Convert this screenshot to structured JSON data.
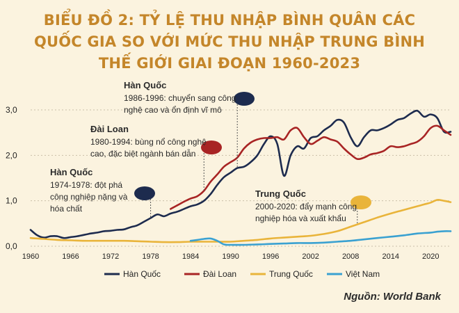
{
  "chart_data": {
    "type": "line",
    "title_lines": [
      "BIỂU ĐỒ 2: TỶ LỆ THU NHẬP BÌNH QUÂN CÁC",
      "QUỐC GIA SO VỚI MỨC THU NHẬP TRUNG BÌNH",
      "THẾ GIỚI GIAI ĐOẠN 1960-2023"
    ],
    "ylim": [
      0,
      3.0
    ],
    "xlim": [
      1960,
      2023
    ],
    "y_ticks": [
      0,
      1,
      2,
      3
    ],
    "y_tick_labels": [
      "0,0",
      "1,0",
      "2,0",
      "3,0"
    ],
    "x_ticks": [
      1960,
      1966,
      1972,
      1978,
      1984,
      1990,
      1996,
      2002,
      2008,
      2014,
      2020
    ],
    "x_tick_labels": [
      "1960",
      "1966",
      "1972",
      "1978",
      "1984",
      "1990",
      "1996",
      "2002",
      "2008",
      "2014",
      "2020"
    ],
    "grid": "horizontal dashed",
    "legend_position": "bottom",
    "series": [
      {
        "name": "Hàn Quốc",
        "color": "#1d2b4e",
        "points": [
          [
            1960,
            0.36
          ],
          [
            1961,
            0.24
          ],
          [
            1962,
            0.19
          ],
          [
            1963,
            0.22
          ],
          [
            1964,
            0.22
          ],
          [
            1965,
            0.18
          ],
          [
            1966,
            0.2
          ],
          [
            1967,
            0.22
          ],
          [
            1968,
            0.25
          ],
          [
            1969,
            0.28
          ],
          [
            1970,
            0.3
          ],
          [
            1971,
            0.33
          ],
          [
            1972,
            0.34
          ],
          [
            1973,
            0.36
          ],
          [
            1974,
            0.37
          ],
          [
            1975,
            0.42
          ],
          [
            1976,
            0.46
          ],
          [
            1977,
            0.54
          ],
          [
            1978,
            0.62
          ],
          [
            1979,
            0.7
          ],
          [
            1980,
            0.66
          ],
          [
            1981,
            0.72
          ],
          [
            1982,
            0.76
          ],
          [
            1983,
            0.82
          ],
          [
            1984,
            0.88
          ],
          [
            1985,
            0.92
          ],
          [
            1986,
            1.0
          ],
          [
            1987,
            1.15
          ],
          [
            1988,
            1.35
          ],
          [
            1989,
            1.52
          ],
          [
            1990,
            1.62
          ],
          [
            1991,
            1.72
          ],
          [
            1992,
            1.75
          ],
          [
            1993,
            1.85
          ],
          [
            1994,
            2.0
          ],
          [
            1995,
            2.25
          ],
          [
            1996,
            2.42
          ],
          [
            1997,
            2.25
          ],
          [
            1998,
            1.55
          ],
          [
            1999,
            2.0
          ],
          [
            2000,
            2.2
          ],
          [
            2001,
            2.15
          ],
          [
            2002,
            2.38
          ],
          [
            2003,
            2.42
          ],
          [
            2004,
            2.55
          ],
          [
            2005,
            2.65
          ],
          [
            2006,
            2.78
          ],
          [
            2007,
            2.72
          ],
          [
            2008,
            2.4
          ],
          [
            2009,
            2.2
          ],
          [
            2010,
            2.4
          ],
          [
            2011,
            2.55
          ],
          [
            2012,
            2.55
          ],
          [
            2013,
            2.6
          ],
          [
            2014,
            2.68
          ],
          [
            2015,
            2.78
          ],
          [
            2016,
            2.82
          ],
          [
            2017,
            2.92
          ],
          [
            2018,
            2.98
          ],
          [
            2019,
            2.85
          ],
          [
            2020,
            2.9
          ],
          [
            2021,
            2.82
          ],
          [
            2022,
            2.52
          ],
          [
            2023,
            2.52
          ]
        ]
      },
      {
        "name": "Đài Loan",
        "color": "#a82424",
        "points": [
          [
            1981,
            0.82
          ],
          [
            1982,
            0.9
          ],
          [
            1983,
            0.98
          ],
          [
            1984,
            1.05
          ],
          [
            1985,
            1.1
          ],
          [
            1986,
            1.22
          ],
          [
            1987,
            1.42
          ],
          [
            1988,
            1.58
          ],
          [
            1989,
            1.75
          ],
          [
            1990,
            1.85
          ],
          [
            1991,
            1.95
          ],
          [
            1992,
            2.15
          ],
          [
            1993,
            2.28
          ],
          [
            1994,
            2.35
          ],
          [
            1995,
            2.38
          ],
          [
            1996,
            2.38
          ],
          [
            1997,
            2.4
          ],
          [
            1998,
            2.35
          ],
          [
            1999,
            2.55
          ],
          [
            2000,
            2.6
          ],
          [
            2001,
            2.4
          ],
          [
            2002,
            2.25
          ],
          [
            2003,
            2.32
          ],
          [
            2004,
            2.4
          ],
          [
            2005,
            2.35
          ],
          [
            2006,
            2.3
          ],
          [
            2007,
            2.15
          ],
          [
            2008,
            2.02
          ],
          [
            2009,
            1.92
          ],
          [
            2010,
            1.95
          ],
          [
            2011,
            2.02
          ],
          [
            2012,
            2.05
          ],
          [
            2013,
            2.1
          ],
          [
            2014,
            2.2
          ],
          [
            2015,
            2.18
          ],
          [
            2016,
            2.2
          ],
          [
            2017,
            2.25
          ],
          [
            2018,
            2.3
          ],
          [
            2019,
            2.42
          ],
          [
            2020,
            2.6
          ],
          [
            2021,
            2.65
          ],
          [
            2022,
            2.55
          ],
          [
            2023,
            2.45
          ]
        ]
      },
      {
        "name": "Trung Quốc",
        "color": "#e9b43a",
        "points": [
          [
            1960,
            0.18
          ],
          [
            1962,
            0.16
          ],
          [
            1964,
            0.14
          ],
          [
            1966,
            0.13
          ],
          [
            1968,
            0.12
          ],
          [
            1970,
            0.12
          ],
          [
            1972,
            0.12
          ],
          [
            1974,
            0.12
          ],
          [
            1976,
            0.11
          ],
          [
            1978,
            0.1
          ],
          [
            1980,
            0.09
          ],
          [
            1982,
            0.09
          ],
          [
            1984,
            0.1
          ],
          [
            1986,
            0.1
          ],
          [
            1988,
            0.1
          ],
          [
            1990,
            0.1
          ],
          [
            1992,
            0.12
          ],
          [
            1994,
            0.14
          ],
          [
            1996,
            0.17
          ],
          [
            1998,
            0.19
          ],
          [
            2000,
            0.21
          ],
          [
            2002,
            0.23
          ],
          [
            2004,
            0.27
          ],
          [
            2006,
            0.33
          ],
          [
            2008,
            0.43
          ],
          [
            2010,
            0.53
          ],
          [
            2012,
            0.63
          ],
          [
            2014,
            0.72
          ],
          [
            2016,
            0.8
          ],
          [
            2018,
            0.88
          ],
          [
            2019,
            0.92
          ],
          [
            2020,
            0.96
          ],
          [
            2021,
            1.02
          ],
          [
            2022,
            1.0
          ],
          [
            2023,
            0.97
          ]
        ]
      },
      {
        "name": "Việt Nam",
        "color": "#3aa1d1",
        "points": [
          [
            1984,
            0.12
          ],
          [
            1985,
            0.14
          ],
          [
            1986,
            0.16
          ],
          [
            1987,
            0.17
          ],
          [
            1988,
            0.12
          ],
          [
            1989,
            0.04
          ],
          [
            1990,
            0.03
          ],
          [
            1992,
            0.03
          ],
          [
            1994,
            0.04
          ],
          [
            1996,
            0.05
          ],
          [
            1998,
            0.06
          ],
          [
            2000,
            0.07
          ],
          [
            2002,
            0.07
          ],
          [
            2004,
            0.08
          ],
          [
            2006,
            0.1
          ],
          [
            2008,
            0.12
          ],
          [
            2010,
            0.15
          ],
          [
            2012,
            0.18
          ],
          [
            2014,
            0.21
          ],
          [
            2016,
            0.24
          ],
          [
            2018,
            0.28
          ],
          [
            2020,
            0.3
          ],
          [
            2021,
            0.32
          ],
          [
            2022,
            0.33
          ],
          [
            2023,
            0.33
          ]
        ]
      }
    ],
    "annotations": [
      {
        "id": "korea1974",
        "heading": "Hàn Quốc",
        "lines": [
          "1974-1978: đột phá",
          "công nghiệp nặng và",
          "hóa chất"
        ],
        "color": "#1d2b4e",
        "x": 1978,
        "y": 0.6
      },
      {
        "id": "taiwan1980",
        "heading": "Đài Loan",
        "lines": [
          "1980-1994: bùng nổ công nghệ",
          "cao, đặc biệt ngành bán dẫn"
        ],
        "color": "#a82424",
        "x": 1986,
        "y": 1.22
      },
      {
        "id": "korea1986",
        "heading": "Hàn Quốc",
        "lines": [
          "1986-1996: chuyển sang công",
          "nghệ cao và ổn định vĩ mô"
        ],
        "color": "#1d2b4e",
        "x": 1991,
        "y": 1.72
      },
      {
        "id": "china2000",
        "heading": "Trung Quốc",
        "lines": [
          "2000-2020: đẩy mạnh công",
          "nghiệp hóa và xuất khẩu"
        ],
        "color": "#e9b43a",
        "x": 2009,
        "y": 0.48
      }
    ]
  },
  "source": "Nguồn: World Bank"
}
